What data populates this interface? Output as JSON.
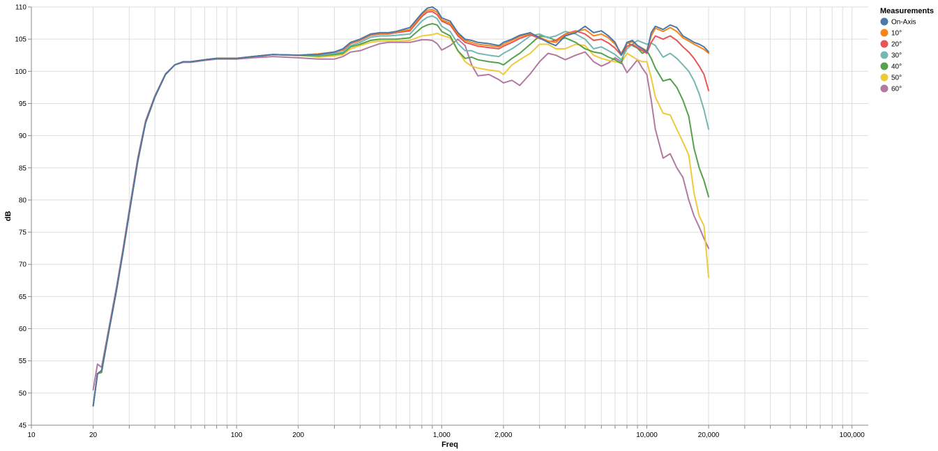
{
  "chart_data": {
    "type": "line",
    "title": "",
    "xlabel": "Freq",
    "ylabel": "dB",
    "xscale": "log",
    "xlim": [
      10,
      120000
    ],
    "ylim": [
      45,
      110
    ],
    "grid": true,
    "legend": {
      "title": "Measurements",
      "placement": "right"
    },
    "x_tick_labels": [
      {
        "value": 10,
        "label": "10"
      },
      {
        "value": 20,
        "label": "20"
      },
      {
        "value": 100,
        "label": "100"
      },
      {
        "value": 200,
        "label": "200"
      },
      {
        "value": 1000,
        "label": "1,000"
      },
      {
        "value": 2000,
        "label": "2,000"
      },
      {
        "value": 10000,
        "label": "10,000"
      },
      {
        "value": 20000,
        "label": "20,000"
      },
      {
        "value": 100000,
        "label": "100,000"
      }
    ],
    "y_ticks": [
      45,
      50,
      55,
      60,
      65,
      70,
      75,
      80,
      85,
      90,
      95,
      100,
      105,
      110
    ],
    "x": [
      20,
      21,
      22,
      24,
      26,
      28,
      30,
      33,
      36,
      40,
      45,
      50,
      55,
      60,
      70,
      80,
      90,
      100,
      120,
      150,
      200,
      250,
      300,
      330,
      360,
      400,
      450,
      500,
      550,
      600,
      700,
      800,
      850,
      900,
      950,
      1000,
      1100,
      1200,
      1300,
      1400,
      1500,
      1700,
      1900,
      2000,
      2200,
      2400,
      2700,
      3000,
      3300,
      3600,
      4000,
      4500,
      5000,
      5500,
      6000,
      6500,
      7000,
      7500,
      8000,
      8500,
      9000,
      9500,
      10000,
      10500,
      11000,
      12000,
      13000,
      14000,
      15000,
      16000,
      17000,
      18000,
      19000,
      20000
    ],
    "series": [
      {
        "name": "On-Axis",
        "color": "#4c78a8",
        "values": [
          48,
          53,
          53.5,
          60,
          66,
          72,
          78,
          86,
          92,
          96,
          99.5,
          101,
          101.5,
          101.5,
          101.8,
          102,
          102,
          102,
          102.3,
          102.6,
          102.5,
          102.6,
          103,
          103.5,
          104.5,
          105,
          105.8,
          106,
          106,
          106.2,
          106.8,
          109,
          109.8,
          110,
          109.5,
          108.3,
          107.8,
          106,
          105,
          104.8,
          104.5,
          104.3,
          104,
          104.5,
          105,
          105.6,
          106,
          105.2,
          104.5,
          104,
          105.5,
          106,
          107,
          106,
          106.3,
          105.5,
          104.5,
          102.5,
          104.5,
          104.8,
          104,
          103.5,
          103,
          106,
          107,
          106.5,
          107.2,
          106.8,
          105.5,
          105,
          104.5,
          104.2,
          103.8,
          103
        ]
      },
      {
        "name": "10°",
        "color": "#f58518",
        "values": [
          48,
          53,
          53.5,
          60,
          66,
          72,
          78,
          86,
          92,
          96,
          99.5,
          101,
          101.5,
          101.5,
          101.8,
          102,
          102,
          102,
          102.3,
          102.6,
          102.5,
          102.7,
          103,
          103.4,
          104.4,
          104.9,
          105.7,
          105.9,
          105.9,
          106.1,
          106.5,
          108.8,
          109.5,
          109.6,
          109.2,
          108,
          107.5,
          105.8,
          104.8,
          104.5,
          104.2,
          104,
          103.8,
          104.2,
          104.8,
          105.4,
          105.9,
          105.3,
          104.7,
          104.5,
          105.7,
          106.2,
          106.5,
          105.5,
          105.8,
          105.2,
          104.2,
          102.8,
          104.3,
          104.6,
          104,
          103.6,
          103.2,
          105.5,
          106.7,
          106.2,
          106.8,
          106.2,
          105.2,
          104.7,
          104.2,
          103.8,
          103.4,
          102.8
        ]
      },
      {
        "name": "20°",
        "color": "#e45756",
        "values": [
          48,
          53,
          53.5,
          60,
          66,
          72,
          78,
          86,
          92,
          96,
          99.5,
          101,
          101.5,
          101.5,
          101.8,
          102,
          102,
          102,
          102.3,
          102.6,
          102.5,
          102.7,
          103,
          103.3,
          104.3,
          104.8,
          105.6,
          105.8,
          105.8,
          106,
          106.3,
          108.5,
          109.2,
          109.3,
          108.8,
          107.8,
          107.2,
          105.5,
          104.5,
          104.2,
          103.9,
          103.7,
          103.5,
          103.9,
          104.5,
          105.1,
          105.7,
          105.1,
          104.6,
          104.8,
          105.8,
          106.3,
          105.8,
          104.8,
          105,
          104.4,
          103.6,
          102.5,
          103.9,
          104.2,
          103.7,
          103.2,
          102.8,
          104.5,
          105.5,
          105,
          105.5,
          104.8,
          103.8,
          103,
          102,
          100.8,
          99.5,
          97
        ]
      },
      {
        "name": "30°",
        "color": "#72b7b2",
        "values": [
          48,
          53,
          53.5,
          60,
          66,
          72,
          78,
          86,
          92,
          96,
          99.5,
          101,
          101.5,
          101.5,
          101.8,
          102,
          102,
          102,
          102.3,
          102.6,
          102.5,
          102.5,
          102.8,
          103,
          104,
          104.5,
          105.3,
          105.5,
          105.5,
          105.6,
          105.8,
          107.8,
          108.4,
          108.6,
          108.2,
          107,
          106.2,
          104.3,
          103.2,
          103.2,
          102.8,
          102.5,
          102.3,
          102.8,
          103.5,
          104.3,
          105.5,
          105.8,
          105.2,
          105.5,
          106.2,
          105.8,
          105,
          103.5,
          103.8,
          103.2,
          102.6,
          101.8,
          103.5,
          104.2,
          104.8,
          104.5,
          104.2,
          104.4,
          104,
          102.2,
          102.8,
          102,
          101,
          100,
          98.5,
          96.5,
          94,
          91
        ]
      },
      {
        "name": "40°",
        "color": "#54a24b",
        "values": [
          48,
          53,
          53.2,
          60,
          66,
          72,
          78,
          86,
          92,
          96,
          99.5,
          101,
          101.5,
          101.5,
          101.8,
          102,
          102,
          102,
          102.3,
          102.6,
          102.5,
          102.4,
          102.6,
          102.8,
          103.8,
          104.2,
          104.8,
          105,
          105,
          105,
          105.2,
          106.8,
          107.2,
          107.4,
          107.2,
          106.2,
          105.5,
          103.2,
          102,
          102.2,
          101.8,
          101.5,
          101.3,
          101,
          102,
          102.8,
          104.2,
          105.5,
          105.3,
          104.8,
          105.2,
          104.5,
          103.5,
          103,
          102.8,
          102.2,
          101.8,
          101.2,
          104.5,
          104,
          103.6,
          102.8,
          103.2,
          102,
          100.5,
          98.5,
          98.8,
          97.5,
          95.5,
          93,
          88,
          85,
          83,
          80.5
        ]
      },
      {
        "name": "50°",
        "color": "#eeca3b",
        "values": [
          48,
          53,
          53.5,
          60,
          66,
          72,
          78,
          86,
          92,
          96,
          99.5,
          101,
          101.5,
          101.5,
          101.8,
          102,
          102,
          102,
          102.3,
          102.6,
          102.5,
          102.2,
          102.4,
          102.6,
          103.5,
          104,
          104.5,
          104.7,
          104.7,
          104.7,
          104.8,
          105.5,
          105.6,
          105.7,
          105.9,
          105.6,
          105.2,
          103.2,
          101.5,
          100.8,
          100.5,
          100.2,
          100,
          99.5,
          101,
          101.8,
          102.8,
          104.2,
          104.2,
          103.5,
          103.5,
          104.2,
          104,
          102.5,
          102,
          101.7,
          101.5,
          101.3,
          102.8,
          102.3,
          101.8,
          101.5,
          101.5,
          99,
          96,
          93.5,
          93.2,
          91,
          89,
          87,
          81,
          77.5,
          76,
          68
        ]
      },
      {
        "name": "60°",
        "color": "#b279a2",
        "values": [
          50.5,
          54.5,
          54,
          60.5,
          66.5,
          72.5,
          78.5,
          86.5,
          92.3,
          96.2,
          99.6,
          101,
          101.4,
          101.4,
          101.7,
          101.9,
          101.9,
          101.9,
          102.1,
          102.3,
          102.1,
          101.9,
          101.9,
          102.3,
          103,
          103.2,
          103.8,
          104.3,
          104.5,
          104.5,
          104.5,
          104.9,
          104.9,
          104.8,
          104.3,
          103.3,
          104,
          105,
          104,
          101,
          99.3,
          99.5,
          98.7,
          98.2,
          98.6,
          97.8,
          99.6,
          101.5,
          102.8,
          102.5,
          101.8,
          102.5,
          103,
          101.5,
          100.8,
          101.3,
          102.1,
          101.5,
          99.8,
          100.8,
          101.8,
          100.5,
          99.5,
          95.5,
          91,
          86.5,
          87.2,
          85,
          83.5,
          80,
          77.5,
          75.8,
          74,
          72.5
        ]
      }
    ]
  }
}
